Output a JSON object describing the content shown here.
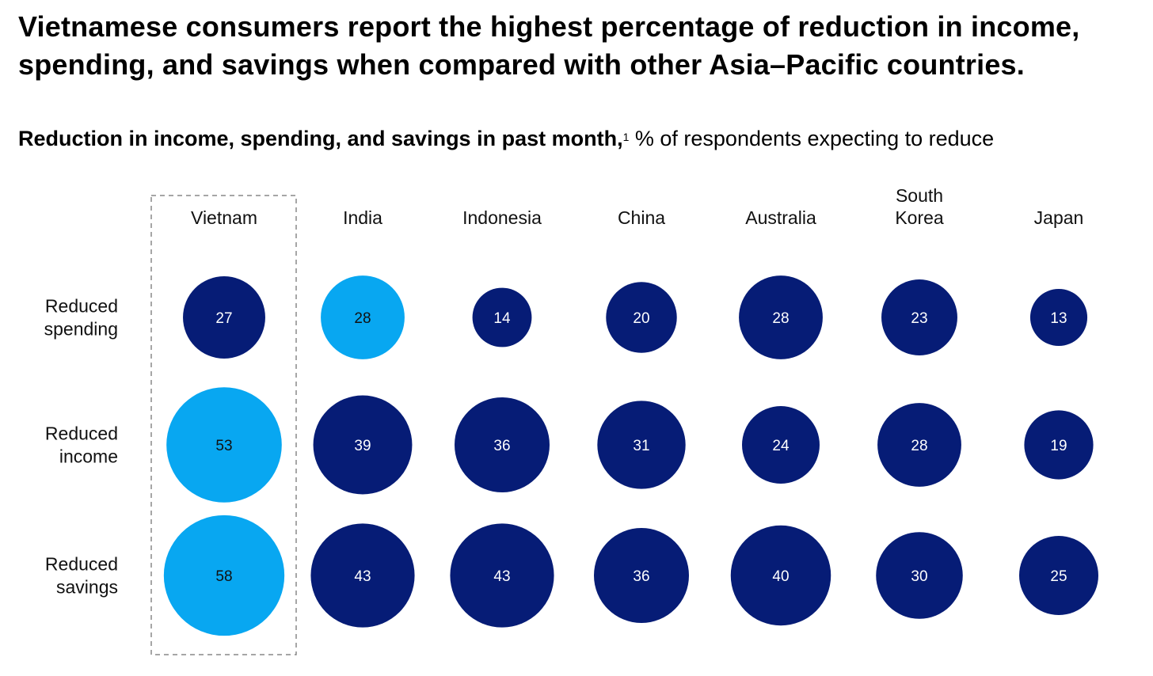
{
  "title": "Vietnamese consumers report the highest percentage of reduction in income, spending, and savings when compared with other Asia–Pacific countries.",
  "subtitle_bold": "Reduction in income, spending, and savings in past month,",
  "subtitle_footnote": "1",
  "subtitle_rest": " % of respondents expecting to reduce",
  "colors": {
    "default": "#061c76",
    "highlight": "#08a7f1",
    "box": "#888888"
  },
  "chart_data": {
    "type": "bubble",
    "title": "Reduction in income, spending, and savings in past month",
    "unit": "% of respondents expecting to reduce",
    "categories": [
      "Vietnam",
      "India",
      "Indonesia",
      "China",
      "Australia",
      "South Korea",
      "Japan"
    ],
    "highlighted_category": "Vietnam",
    "series": [
      {
        "name": "Reduced spending",
        "values": [
          27,
          28,
          14,
          20,
          28,
          23,
          13
        ],
        "highlight": [
          false,
          true,
          false,
          false,
          false,
          false,
          false
        ]
      },
      {
        "name": "Reduced income",
        "values": [
          53,
          39,
          36,
          31,
          24,
          28,
          19
        ],
        "highlight": [
          true,
          false,
          false,
          false,
          false,
          false,
          false
        ]
      },
      {
        "name": "Reduced savings",
        "values": [
          58,
          43,
          43,
          36,
          40,
          30,
          25
        ],
        "highlight": [
          true,
          false,
          false,
          false,
          false,
          false,
          false
        ]
      }
    ]
  }
}
